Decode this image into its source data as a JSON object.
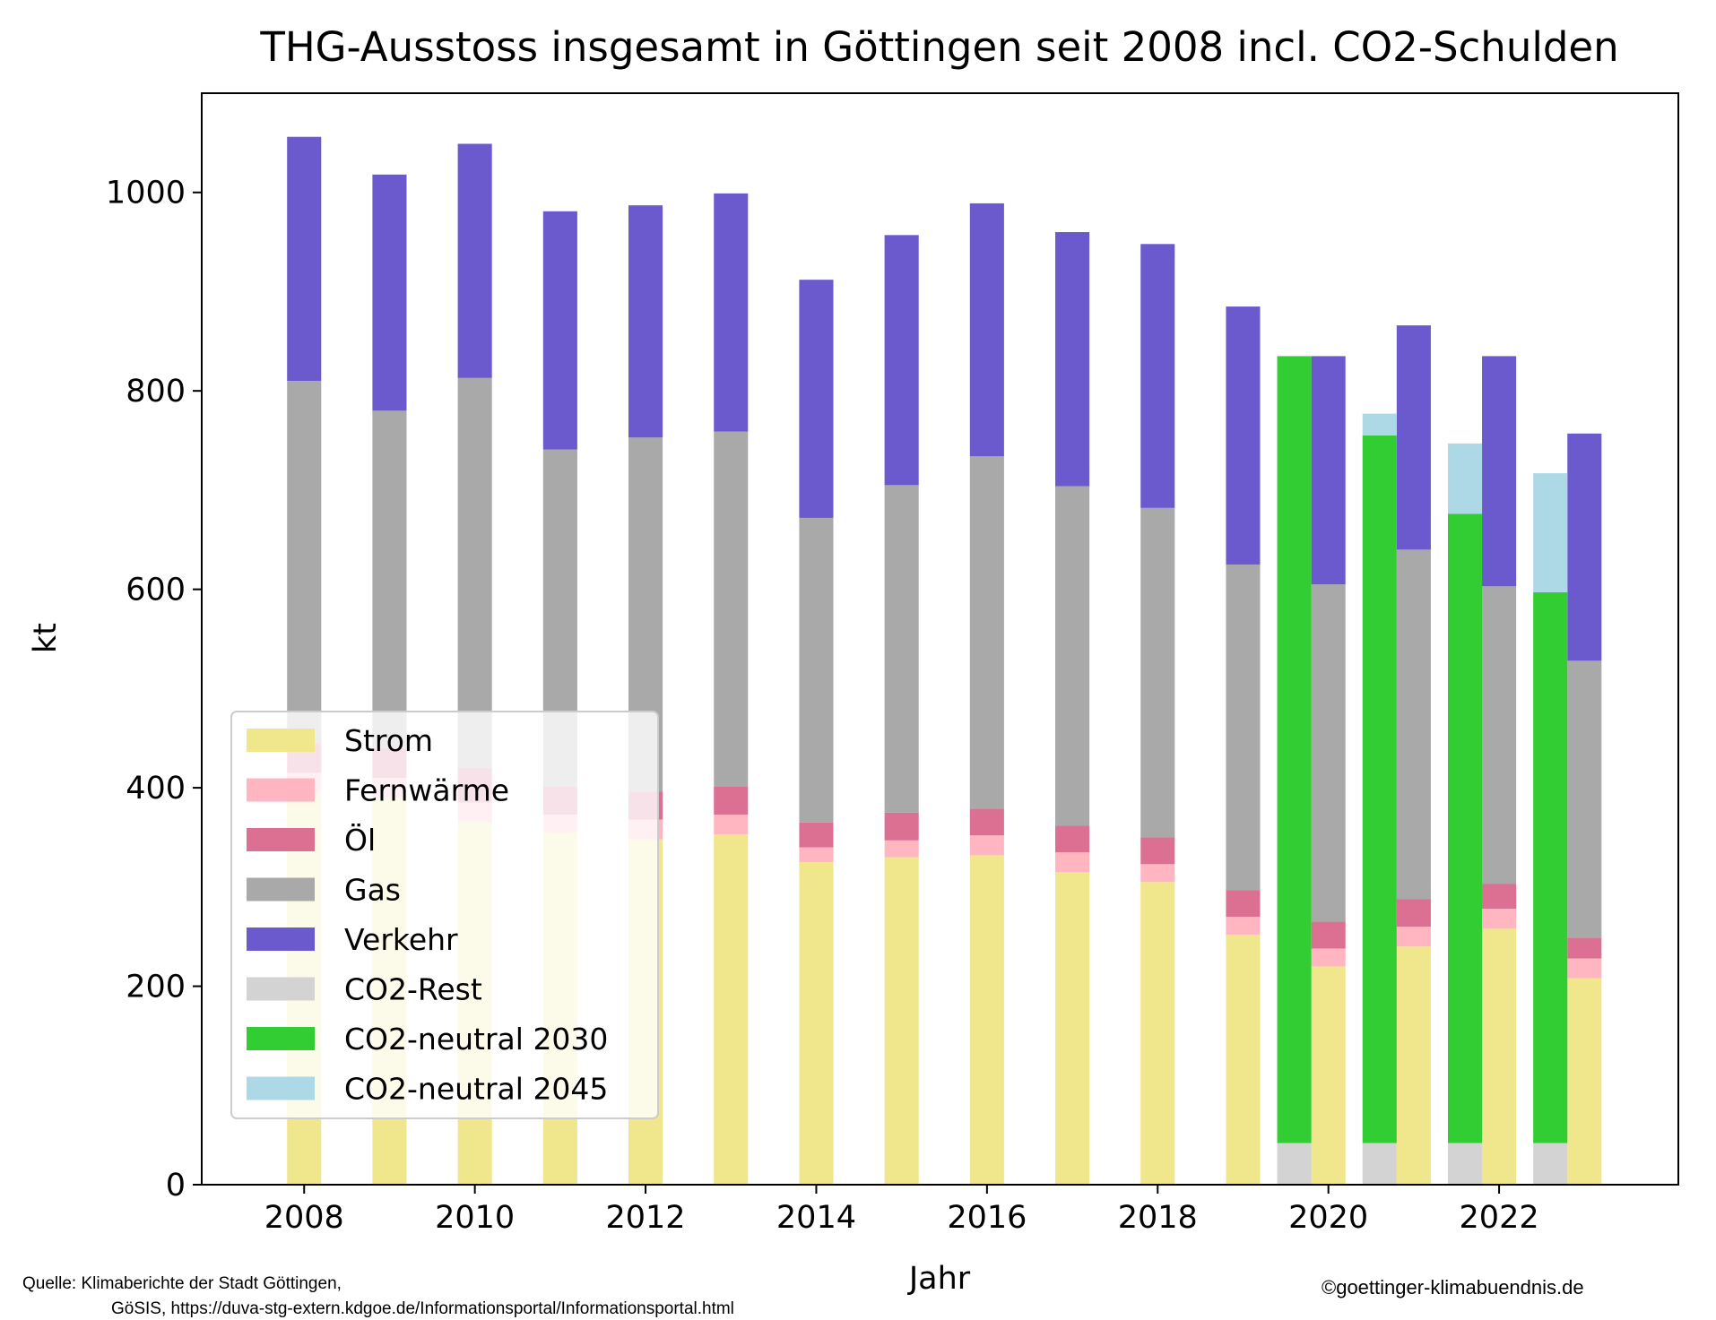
{
  "chart_data": {
    "type": "bar",
    "title": "THG-Ausstoss insgesamt in Göttingen seit 2008 incl. CO2-Schulden",
    "xlabel": "Jahr",
    "ylabel": "kt",
    "xlim": [
      2006.8,
      2024.1
    ],
    "ylim": [
      0,
      1100
    ],
    "x_ticks": [
      2008,
      2010,
      2012,
      2014,
      2016,
      2018,
      2020,
      2022
    ],
    "y_ticks": [
      0,
      200,
      400,
      600,
      800,
      1000
    ],
    "grid": false,
    "legend_position": "lower-left",
    "stacked": true,
    "years": [
      2008,
      2009,
      2010,
      2011,
      2012,
      2013,
      2014,
      2015,
      2016,
      2017,
      2018,
      2019,
      2020,
      2021,
      2022,
      2023
    ],
    "series": [
      {
        "name": "Strom",
        "color": "#f0e68c",
        "values": [
          395,
          390,
          365,
          355,
          348,
          353,
          325,
          330,
          332,
          315,
          305,
          252,
          220,
          240,
          258,
          208
        ]
      },
      {
        "name": "Fernwärme",
        "color": "#ffb6c1",
        "values": [
          20,
          20,
          20,
          18,
          20,
          20,
          15,
          17,
          20,
          20,
          18,
          18,
          18,
          20,
          20,
          20
        ]
      },
      {
        "name": "Öl",
        "color": "#db7093",
        "values": [
          30,
          30,
          35,
          28,
          28,
          28,
          25,
          28,
          27,
          27,
          27,
          27,
          27,
          28,
          25,
          21
        ]
      },
      {
        "name": "Gas",
        "color": "#a9a9a9",
        "values": [
          365,
          340,
          393,
          340,
          357,
          358,
          307,
          330,
          355,
          342,
          332,
          328,
          340,
          352,
          300,
          279
        ]
      },
      {
        "name": "Verkehr",
        "color": "#6a5acd",
        "values": [
          246,
          238,
          236,
          240,
          234,
          240,
          240,
          252,
          255,
          256,
          266,
          260,
          230,
          226,
          232,
          229
        ]
      }
    ],
    "co2_debt": {
      "years": [
        2020,
        2021,
        2022,
        2023
      ],
      "series": [
        {
          "name": "CO2-Rest",
          "color": "#d3d3d3",
          "values": [
            42,
            42,
            42,
            42
          ]
        },
        {
          "name": "CO2-neutral 2030",
          "color": "#32cd32",
          "values": [
            793,
            713,
            634,
            555
          ]
        },
        {
          "name": "CO2-neutral 2045",
          "color": "#add8e6",
          "values": [
            0,
            22,
            71,
            120
          ]
        }
      ]
    },
    "legend": [
      "Strom",
      "Fernwärme",
      "Öl",
      "Gas",
      "Verkehr",
      "CO2-Rest",
      "CO2-neutral 2030",
      "CO2-neutral 2045"
    ]
  },
  "footer": {
    "source_line1": "Quelle: Klimaberichte der Stadt Göttingen,",
    "source_line2": "GöSIS, https://duva-stg-extern.kdgoe.de/Informationsportal/Informationsportal.html",
    "copyright": "©goettinger-klimabuendnis.de"
  },
  "colors": {
    "axis": "#000000",
    "background": "#ffffff"
  }
}
